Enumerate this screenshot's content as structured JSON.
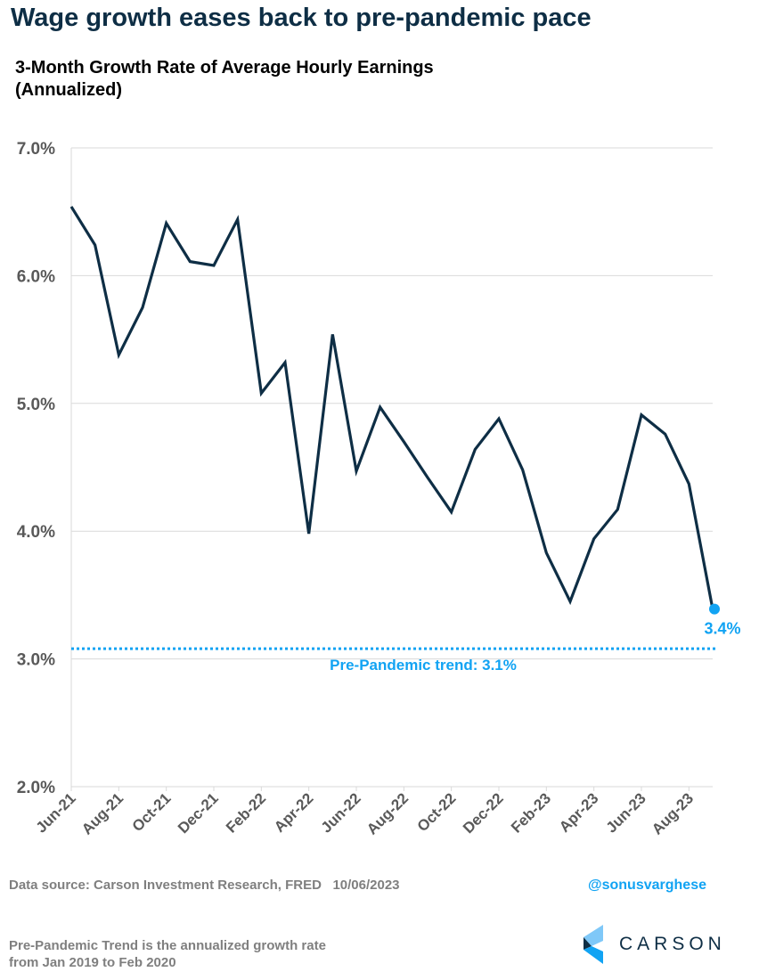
{
  "header": {
    "title": "Wage growth eases back to pre-pandemic pace",
    "subtitle_line1": "3-Month Growth Rate of Average Hourly Earnings",
    "subtitle_line2": "(Annualized)"
  },
  "chart_data": {
    "type": "line",
    "title": "3-Month Growth Rate of Average Hourly Earnings (Annualized)",
    "x": [
      "Jun-21",
      "Jul-21",
      "Aug-21",
      "Sep-21",
      "Oct-21",
      "Nov-21",
      "Dec-21",
      "Jan-22",
      "Feb-22",
      "Mar-22",
      "Apr-22",
      "May-22",
      "Jun-22",
      "Jul-22",
      "Aug-22",
      "Sep-22",
      "Oct-22",
      "Nov-22",
      "Dec-22",
      "Jan-23",
      "Feb-23",
      "Mar-23",
      "Apr-23",
      "May-23",
      "Jun-23",
      "Jul-23",
      "Aug-23",
      "Sep-23"
    ],
    "values": [
      6.54,
      6.24,
      5.38,
      5.75,
      6.41,
      6.11,
      6.08,
      6.44,
      5.08,
      5.32,
      3.98,
      5.54,
      4.47,
      4.97,
      4.7,
      4.42,
      4.15,
      4.64,
      4.88,
      4.48,
      3.83,
      3.45,
      3.94,
      4.17,
      4.91,
      4.76,
      4.37,
      3.39
    ],
    "xtick_labels": [
      "Jun-21",
      "Aug-21",
      "Oct-21",
      "Dec-21",
      "Feb-22",
      "Apr-22",
      "Jun-22",
      "Aug-22",
      "Oct-22",
      "Dec-22",
      "Feb-23",
      "Apr-23",
      "Jun-23",
      "Aug-23"
    ],
    "ytick_labels": [
      "7.0%",
      "6.0%",
      "5.0%",
      "4.0%",
      "3.0%",
      "2.0%"
    ],
    "ylim": [
      2.0,
      7.0
    ],
    "grid": true,
    "reference_line": {
      "value": 3.08,
      "label": "Pre-Pandemic trend: 3.1%",
      "color": "#11a3f3"
    },
    "last_point_label": "3.4%",
    "line_color": "#0e2e45",
    "highlight_color": "#11a3f3"
  },
  "footer": {
    "source": "Data source: Carson Investment Research, FRED   10/06/2023",
    "handle": "@sonusvarghese",
    "note_line1": "Pre-Pandemic Trend is the annualized growth rate",
    "note_line2": "from Jan 2019 to Feb 2020",
    "logo": "CARSON"
  }
}
